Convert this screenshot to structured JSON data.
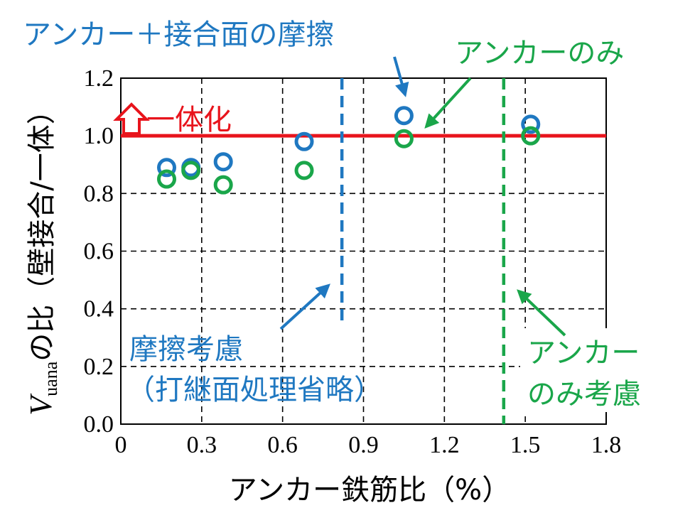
{
  "chart_data": {
    "type": "scatter",
    "xlabel": "アンカー鉄筋比（%）",
    "ylabel_prefix": "V",
    "ylabel_sub": "uana",
    "ylabel_suffix": "の比（壁接合/一体）",
    "xlim": [
      0,
      1.8
    ],
    "ylim": [
      0,
      1.2
    ],
    "x_ticks": [
      0,
      0.3,
      0.6,
      0.9,
      1.2,
      1.5,
      1.8
    ],
    "x_tick_labels": [
      "0",
      "0.3",
      "0.6",
      "0.9",
      "1.2",
      "1.5",
      "1.8"
    ],
    "y_ticks": [
      0,
      0.2,
      0.4,
      0.6,
      0.8,
      1.0,
      1.2
    ],
    "y_tick_labels": [
      "0.0",
      "0.2",
      "0.4",
      "0.6",
      "0.8",
      "1.0",
      "1.2"
    ],
    "grid": true,
    "colors": {
      "blue": "#1f78c1",
      "green": "#1aa64a",
      "red": "#e8141c"
    },
    "series": [
      {
        "name": "アンカー＋接合面の摩擦",
        "color": "#1f78c1",
        "marker": "open-circle",
        "points": [
          {
            "x": 0.17,
            "y": 0.89
          },
          {
            "x": 0.26,
            "y": 0.89
          },
          {
            "x": 0.38,
            "y": 0.91
          },
          {
            "x": 0.68,
            "y": 0.98
          },
          {
            "x": 1.05,
            "y": 1.07
          },
          {
            "x": 1.52,
            "y": 1.04
          }
        ]
      },
      {
        "name": "アンカーのみ",
        "color": "#1aa64a",
        "marker": "open-circle",
        "points": [
          {
            "x": 0.17,
            "y": 0.85
          },
          {
            "x": 0.26,
            "y": 0.88
          },
          {
            "x": 0.38,
            "y": 0.83
          },
          {
            "x": 0.68,
            "y": 0.88
          },
          {
            "x": 1.05,
            "y": 0.99
          },
          {
            "x": 1.52,
            "y": 1.0
          }
        ]
      }
    ],
    "reference_lines": [
      {
        "label": "一体化",
        "orientation": "horizontal",
        "value": 1.0,
        "color": "#e8141c",
        "style": "solid"
      },
      {
        "label": "摩擦考慮（打継面処理省略）",
        "label_lines": [
          "摩擦考慮",
          "（打継面処理省略）"
        ],
        "orientation": "vertical",
        "value": 0.82,
        "color": "#1f78c1",
        "style": "dashed",
        "y_from": 0.35
      },
      {
        "label": "アンカーのみ考慮",
        "label_lines": [
          "アンカー",
          "のみ考慮"
        ],
        "orientation": "vertical",
        "value": 1.42,
        "color": "#1aa64a",
        "style": "dashed",
        "y_from": 0
      }
    ]
  }
}
